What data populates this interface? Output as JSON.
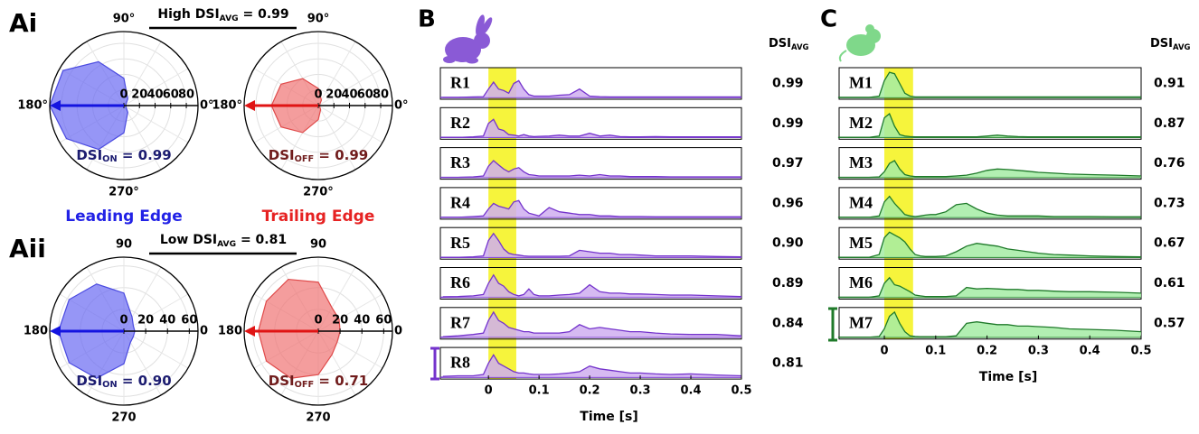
{
  "chart_data": [
    {
      "type": "polar",
      "panel_label": "Ai",
      "header": {
        "text": "High DSI",
        "sub": "AVG",
        "suffix": " = 0.99"
      },
      "angles": [
        0,
        30,
        60,
        90,
        120,
        150,
        180,
        210,
        240,
        270,
        300,
        330
      ],
      "values": [
        3,
        3,
        10,
        35,
        65,
        90,
        95,
        85,
        65,
        35,
        10,
        3
      ],
      "color": "#6a6af2",
      "edge_color": "#4a4ae0",
      "rlim": [
        0,
        95
      ],
      "rticks": [
        0,
        20,
        40,
        60,
        80
      ],
      "thetaticks": [
        {
          "value": 90,
          "label": "90°"
        },
        {
          "value": 180,
          "label": "180°"
        },
        {
          "value": 270,
          "label": "270°"
        },
        {
          "value": 0,
          "label": "0°"
        }
      ],
      "vector": {
        "angle": 180,
        "length": 95
      },
      "vector_color": "#1414e0",
      "annotation": {
        "text": "DSI",
        "sub": "ON",
        "suffix": " = 0.99"
      },
      "annotation_color": "#1c1c70",
      "caption": "Leading Edge",
      "caption_color": "#2222e6"
    },
    {
      "type": "polar",
      "angles": [
        0,
        30,
        60,
        90,
        120,
        150,
        180,
        210,
        240,
        270,
        300,
        330
      ],
      "values": [
        2,
        2,
        8,
        22,
        40,
        55,
        60,
        55,
        40,
        18,
        6,
        2
      ],
      "color": "#f07474",
      "edge_color": "#e04a4a",
      "rlim": [
        0,
        95
      ],
      "rticks": [
        0,
        20,
        40,
        60,
        80
      ],
      "thetaticks": [
        {
          "value": 90,
          "label": "90°"
        },
        {
          "value": 180,
          "label": "180°"
        },
        {
          "value": 270,
          "label": "270°"
        },
        {
          "value": 0,
          "label": "0°"
        }
      ],
      "vector": {
        "angle": 180,
        "length": 95
      },
      "vector_color": "#e01414",
      "annotation": {
        "text": "DSI",
        "sub": "OFF",
        "suffix": " = 0.99"
      },
      "annotation_color": "#701c1c",
      "caption": "Trailing Edge",
      "caption_color": "#e62222"
    },
    {
      "type": "polar",
      "panel_label": "Aii",
      "header": {
        "text": "Low DSI",
        "sub": "AVG",
        "suffix": " = 0.81"
      },
      "angles": [
        0,
        30,
        60,
        90,
        120,
        150,
        180,
        210,
        240,
        270,
        300,
        330
      ],
      "values": [
        10,
        10,
        15,
        35,
        50,
        58,
        60,
        58,
        50,
        30,
        12,
        10
      ],
      "color": "#6a6af2",
      "edge_color": "#4a4ae0",
      "rlim": [
        0,
        68
      ],
      "rticks": [
        0,
        20,
        40,
        60
      ],
      "thetaticks": [
        90,
        180,
        270,
        0
      ],
      "vector": {
        "angle": 180,
        "length": 68
      },
      "vector_color": "#1414e0",
      "annotation": {
        "text": "DSI",
        "sub": "ON",
        "suffix": " = 0.90"
      },
      "annotation_color": "#1c1c70"
    },
    {
      "type": "polar",
      "angles": [
        0,
        30,
        60,
        90,
        120,
        150,
        180,
        210,
        240,
        270,
        300,
        330
      ],
      "values": [
        20,
        22,
        25,
        45,
        55,
        55,
        55,
        55,
        50,
        40,
        25,
        20
      ],
      "color": "#f07474",
      "edge_color": "#e04a4a",
      "rlim": [
        0,
        68
      ],
      "rticks": [
        0,
        20,
        40,
        60
      ],
      "thetaticks": [
        90,
        180,
        270,
        0
      ],
      "vector": {
        "angle": 180,
        "length": 68
      },
      "vector_color": "#e01414",
      "annotation": {
        "text": "DSI",
        "sub": "OFF",
        "suffix": " = 0.71"
      },
      "annotation_color": "#701c1c"
    },
    {
      "type": "psth",
      "panel_label": "B",
      "x": [
        -0.09,
        -0.06,
        -0.03,
        -0.01,
        0,
        0.01,
        0.02,
        0.03,
        0.04,
        0.05,
        0.06,
        0.07,
        0.08,
        0.09,
        0.1,
        0.12,
        0.14,
        0.16,
        0.18,
        0.2,
        0.22,
        0.24,
        0.26,
        0.28,
        0.3,
        0.33,
        0.36,
        0.4,
        0.45,
        0.5
      ],
      "xlim": [
        -0.095,
        0.5
      ],
      "xticks": [
        0,
        0.1,
        0.2,
        0.3,
        0.4,
        0.5
      ],
      "xlabel": "Time [s]",
      "highlight": [
        0,
        0.055
      ],
      "highlight_color": "#f6f43c",
      "line_color": "#7433cc",
      "fill_color": "#cfaef0",
      "dsi_header": {
        "text": "DSI",
        "sub": "AVG"
      },
      "series": [
        {
          "name": "R1",
          "values": [
            0,
            0,
            0.02,
            0.03,
            0.3,
            0.55,
            0.3,
            0.25,
            0.15,
            0.5,
            0.6,
            0.3,
            0.1,
            0.05,
            0.05,
            0.05,
            0.08,
            0.1,
            0.3,
            0.05,
            0.03,
            0.02,
            0.02,
            0.02,
            0.02,
            0.02,
            0.02,
            0.02,
            0.02,
            0.02
          ]
        },
        {
          "name": "R2",
          "values": [
            0,
            0,
            0.02,
            0.05,
            0.5,
            0.65,
            0.3,
            0.25,
            0.1,
            0.08,
            0.05,
            0.1,
            0.05,
            0.03,
            0.04,
            0.05,
            0.08,
            0.05,
            0.05,
            0.15,
            0.05,
            0.08,
            0.03,
            0.02,
            0.02,
            0.03,
            0.02,
            0.02,
            0.02,
            0.02
          ]
        },
        {
          "name": "R3",
          "values": [
            0,
            0,
            0.02,
            0.05,
            0.4,
            0.6,
            0.45,
            0.3,
            0.2,
            0.3,
            0.35,
            0.2,
            0.1,
            0.08,
            0.05,
            0.05,
            0.05,
            0.05,
            0.08,
            0.05,
            0.1,
            0.05,
            0.05,
            0.03,
            0.03,
            0.03,
            0.02,
            0.02,
            0.02,
            0.02
          ]
        },
        {
          "name": "R4",
          "values": [
            0,
            0,
            0.03,
            0.05,
            0.3,
            0.5,
            0.4,
            0.35,
            0.3,
            0.55,
            0.6,
            0.3,
            0.15,
            0.1,
            0.05,
            0.35,
            0.2,
            0.15,
            0.1,
            0.1,
            0.05,
            0.05,
            0.03,
            0.03,
            0.03,
            0.02,
            0.02,
            0.02,
            0.02,
            0.02
          ]
        },
        {
          "name": "R5",
          "values": [
            0,
            0,
            0.02,
            0.05,
            0.6,
            0.85,
            0.6,
            0.3,
            0.15,
            0.1,
            0.08,
            0.05,
            0.04,
            0.04,
            0.04,
            0.04,
            0.04,
            0.05,
            0.25,
            0.2,
            0.15,
            0.15,
            0.1,
            0.1,
            0.08,
            0.05,
            0.05,
            0.05,
            0.03,
            0.02
          ]
        },
        {
          "name": "R6",
          "values": [
            0.02,
            0.03,
            0.05,
            0.1,
            0.5,
            0.8,
            0.5,
            0.4,
            0.2,
            0.1,
            0.05,
            0.1,
            0.3,
            0.1,
            0.05,
            0.05,
            0.08,
            0.1,
            0.15,
            0.45,
            0.2,
            0.15,
            0.15,
            0.12,
            0.12,
            0.1,
            0.08,
            0.08,
            0.05,
            0.03
          ]
        },
        {
          "name": "R7",
          "values": [
            0.02,
            0.05,
            0.1,
            0.15,
            0.6,
            0.9,
            0.6,
            0.5,
            0.35,
            0.3,
            0.25,
            0.2,
            0.2,
            0.15,
            0.15,
            0.15,
            0.15,
            0.2,
            0.45,
            0.3,
            0.35,
            0.3,
            0.25,
            0.2,
            0.2,
            0.15,
            0.12,
            0.1,
            0.1,
            0.05
          ]
        },
        {
          "name": "R8",
          "values": [
            0.03,
            0.05,
            0.05,
            0.1,
            0.5,
            0.8,
            0.5,
            0.4,
            0.3,
            0.2,
            0.15,
            0.15,
            0.12,
            0.1,
            0.1,
            0.1,
            0.12,
            0.15,
            0.2,
            0.4,
            0.3,
            0.25,
            0.2,
            0.15,
            0.15,
            0.12,
            0.1,
            0.12,
            0.08,
            0.05
          ]
        }
      ],
      "dsi_avg": {
        "values": [
          0.99,
          0.99,
          0.97,
          0.96,
          0.9,
          0.89,
          0.84,
          0.81
        ],
        "value_labels": [
          "0.99",
          "0.99",
          "0.97",
          "0.96",
          "0.90",
          "0.89",
          "0.84",
          "0.81"
        ]
      }
    },
    {
      "type": "psth",
      "panel_label": "C",
      "x": [
        -0.09,
        -0.06,
        -0.03,
        -0.01,
        0,
        0.01,
        0.02,
        0.03,
        0.04,
        0.05,
        0.06,
        0.07,
        0.08,
        0.09,
        0.1,
        0.12,
        0.14,
        0.16,
        0.18,
        0.2,
        0.22,
        0.24,
        0.26,
        0.28,
        0.3,
        0.33,
        0.36,
        0.4,
        0.45,
        0.5
      ],
      "xlim": [
        -0.088,
        0.5
      ],
      "xticks": [
        0,
        0.1,
        0.2,
        0.3,
        0.4,
        0.5
      ],
      "xlabel": "Time [s]",
      "highlight": [
        0,
        0.056
      ],
      "highlight_color": "#f6f43c",
      "line_color": "#1f7a2a",
      "fill_color": "#a4eca4",
      "dsi_header": {
        "text": "DSI",
        "sub": "AVG"
      },
      "series": [
        {
          "name": "M1",
          "values": [
            0,
            0,
            0,
            0.05,
            0.6,
            0.9,
            0.85,
            0.5,
            0.15,
            0.05,
            0.02,
            0.02,
            0.02,
            0.02,
            0.02,
            0.02,
            0.02,
            0.02,
            0.02,
            0.02,
            0.02,
            0.02,
            0.02,
            0.02,
            0.02,
            0.02,
            0.02,
            0.02,
            0.02,
            0.02
          ]
        },
        {
          "name": "M2",
          "values": [
            0,
            0,
            0,
            0.05,
            0.7,
            0.85,
            0.4,
            0.1,
            0.05,
            0.03,
            0.02,
            0.02,
            0.02,
            0.02,
            0.02,
            0.02,
            0.02,
            0.02,
            0.02,
            0.05,
            0.08,
            0.05,
            0.03,
            0.02,
            0.02,
            0.02,
            0.02,
            0.02,
            0.02,
            0.02
          ]
        },
        {
          "name": "M3",
          "values": [
            0,
            0,
            0,
            0.02,
            0.2,
            0.5,
            0.6,
            0.3,
            0.1,
            0.05,
            0.03,
            0.03,
            0.03,
            0.03,
            0.03,
            0.03,
            0.05,
            0.08,
            0.15,
            0.25,
            0.3,
            0.28,
            0.25,
            0.22,
            0.18,
            0.15,
            0.12,
            0.1,
            0.08,
            0.05
          ]
        },
        {
          "name": "M4",
          "values": [
            0,
            0,
            0,
            0.05,
            0.55,
            0.75,
            0.5,
            0.3,
            0.1,
            0.05,
            0.03,
            0.05,
            0.08,
            0.1,
            0.1,
            0.2,
            0.45,
            0.5,
            0.3,
            0.15,
            0.08,
            0.05,
            0.05,
            0.05,
            0.05,
            0.03,
            0.03,
            0.03,
            0.02,
            0.02
          ]
        },
        {
          "name": "M5",
          "values": [
            0,
            0,
            0,
            0.1,
            0.7,
            0.9,
            0.8,
            0.7,
            0.55,
            0.3,
            0.1,
            0.05,
            0.03,
            0.03,
            0.03,
            0.05,
            0.2,
            0.4,
            0.5,
            0.45,
            0.4,
            0.3,
            0.25,
            0.2,
            0.15,
            0.1,
            0.08,
            0.05,
            0.03,
            0.02
          ]
        },
        {
          "name": "M6",
          "values": [
            0,
            0,
            0,
            0.05,
            0.5,
            0.7,
            0.45,
            0.4,
            0.3,
            0.2,
            0.08,
            0.05,
            0.03,
            0.03,
            0.03,
            0.03,
            0.05,
            0.35,
            0.3,
            0.32,
            0.3,
            0.28,
            0.28,
            0.25,
            0.25,
            0.22,
            0.2,
            0.2,
            0.18,
            0.15
          ]
        },
        {
          "name": "M7",
          "values": [
            0,
            0,
            0,
            0.03,
            0.3,
            0.75,
            0.9,
            0.5,
            0.2,
            0.05,
            0.03,
            0.02,
            0.02,
            0.02,
            0.02,
            0.02,
            0.05,
            0.5,
            0.55,
            0.5,
            0.45,
            0.45,
            0.4,
            0.4,
            0.38,
            0.35,
            0.3,
            0.28,
            0.25,
            0.2
          ]
        }
      ],
      "dsi_avg": {
        "values": [
          0.91,
          0.87,
          0.76,
          0.73,
          0.67,
          0.61,
          0.57
        ],
        "value_labels": [
          "0.91",
          "0.87",
          "0.76",
          "0.73",
          "0.67",
          "0.61",
          "0.57"
        ]
      }
    }
  ]
}
